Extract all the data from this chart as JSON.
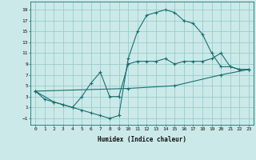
{
  "xlabel": "Humidex (Indice chaleur)",
  "xlim": [
    -0.5,
    23.5
  ],
  "ylim": [
    -2.2,
    20.5
  ],
  "xticks": [
    0,
    1,
    2,
    3,
    4,
    5,
    6,
    7,
    8,
    9,
    10,
    11,
    12,
    13,
    14,
    15,
    16,
    17,
    18,
    19,
    20,
    21,
    22,
    23
  ],
  "yticks": [
    -1,
    1,
    3,
    5,
    7,
    9,
    11,
    13,
    15,
    17,
    19
  ],
  "background_color": "#cce9e9",
  "grid_color": "#99cccc",
  "line_color": "#1a7070",
  "line1_x": [
    0,
    1,
    2,
    3,
    4,
    5,
    6,
    7,
    8,
    9,
    10,
    11,
    12,
    13,
    14,
    15,
    16,
    17,
    18,
    19,
    20,
    21,
    22,
    23
  ],
  "line1_y": [
    4,
    2.5,
    2,
    1.5,
    1,
    0.5,
    0,
    -0.5,
    -1,
    -0.5,
    10,
    15,
    18,
    18.5,
    19,
    18.5,
    17,
    16.5,
    14.5,
    11,
    8.5,
    8.5,
    8,
    8
  ],
  "line2_x": [
    0,
    2,
    3,
    4,
    5,
    6,
    7,
    8,
    9,
    10,
    11,
    12,
    13,
    14,
    15,
    16,
    17,
    18,
    19,
    20,
    21,
    22,
    23
  ],
  "line2_y": [
    4,
    2,
    1.5,
    1,
    3,
    5.5,
    7.5,
    3,
    3,
    9,
    9.5,
    9.5,
    9.5,
    10,
    9,
    9.5,
    9.5,
    9.5,
    10,
    11,
    8.5,
    8,
    8
  ],
  "line3_x": [
    0,
    10,
    15,
    20,
    23
  ],
  "line3_y": [
    4,
    4.5,
    5,
    7,
    8
  ]
}
